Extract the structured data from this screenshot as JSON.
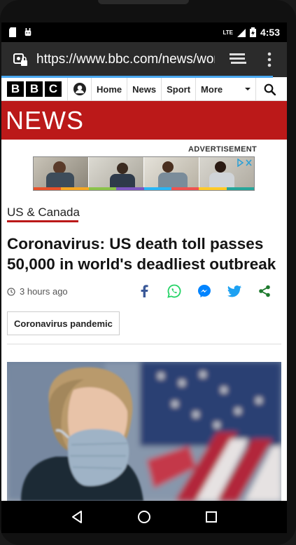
{
  "status_bar": {
    "network": "LTE",
    "time": "4:53"
  },
  "browser": {
    "url": "https://www.bbc.com/news/wor",
    "loading_progress_percent": 95
  },
  "bbc_nav": {
    "logo_letters": [
      "B",
      "B",
      "C"
    ],
    "items": [
      {
        "label": "Home"
      },
      {
        "label": "News"
      },
      {
        "label": "Sport"
      }
    ],
    "more_label": "More"
  },
  "section_banner": "NEWS",
  "advertisement": {
    "label": "ADVERTISEMENT"
  },
  "article": {
    "category": "US & Canada",
    "headline": "Coronavirus: US death toll passes 50,000 in world's deadliest outbreak",
    "timestamp": "3 hours ago",
    "tag": "Coronavirus pandemic"
  },
  "colors": {
    "bbc_red": "#bb1919",
    "facebook": "#3b5998",
    "whatsapp": "#25d366",
    "messenger": "#0084ff",
    "twitter": "#1da1f2",
    "share_generic": "#1e7a2e"
  }
}
